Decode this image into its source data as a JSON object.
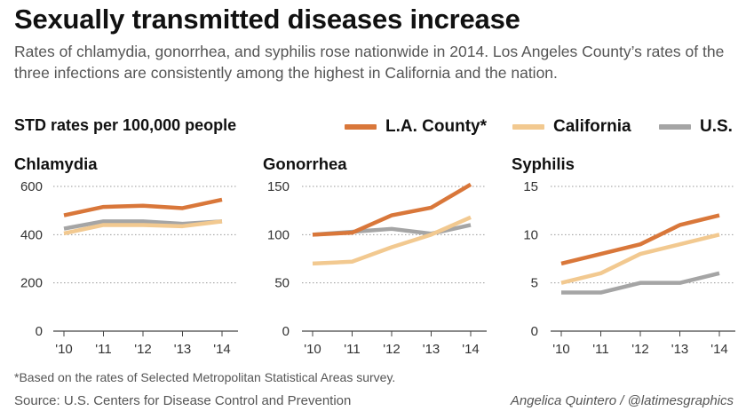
{
  "header": {
    "title": "Sexually transmitted diseases increase",
    "subtitle": "Rates of chlamydia, gonorrhea, and syphilis rose nationwide in 2014. Los Angeles County’s rates of the three infections are consistently among the highest in California and the nation."
  },
  "unit_label": "STD rates per 100,000 people",
  "legend": [
    {
      "label": "L.A. County*",
      "color": "#d9773a"
    },
    {
      "label": "California",
      "color": "#f2c990"
    },
    {
      "label": "U.S.",
      "color": "#a5a5a5"
    }
  ],
  "chart_data": [
    {
      "type": "line",
      "title": "Chlamydia",
      "x": [
        "'10",
        "'11",
        "'12",
        "'13",
        "'14"
      ],
      "ylim": [
        0,
        600
      ],
      "yticks": [
        0,
        200,
        400,
        600
      ],
      "grid": true,
      "series": [
        {
          "name": "L.A. County*",
          "color": "#d9773a",
          "values": [
            480,
            515,
            520,
            510,
            545
          ]
        },
        {
          "name": "California",
          "color": "#f2c990",
          "values": [
            405,
            440,
            440,
            435,
            455
          ]
        },
        {
          "name": "U.S.",
          "color": "#a5a5a5",
          "values": [
            425,
            455,
            455,
            445,
            455
          ]
        }
      ]
    },
    {
      "type": "line",
      "title": "Gonorrhea",
      "x": [
        "'10",
        "'11",
        "'12",
        "'13",
        "'14"
      ],
      "ylim": [
        0,
        150
      ],
      "yticks": [
        0,
        50,
        100,
        150
      ],
      "grid": true,
      "series": [
        {
          "name": "L.A. County*",
          "color": "#d9773a",
          "values": [
            100,
            102,
            120,
            128,
            152
          ]
        },
        {
          "name": "California",
          "color": "#f2c990",
          "values": [
            70,
            72,
            87,
            100,
            118
          ]
        },
        {
          "name": "U.S.",
          "color": "#a5a5a5",
          "values": [
            100,
            103,
            106,
            101,
            110
          ]
        }
      ]
    },
    {
      "type": "line",
      "title": "Syphilis",
      "x": [
        "'10",
        "'11",
        "'12",
        "'13",
        "'14"
      ],
      "ylim": [
        0,
        15
      ],
      "yticks": [
        0,
        5,
        10,
        15
      ],
      "grid": true,
      "series": [
        {
          "name": "L.A. County*",
          "color": "#d9773a",
          "values": [
            7,
            8,
            9,
            11,
            12
          ]
        },
        {
          "name": "California",
          "color": "#f2c990",
          "values": [
            5,
            6,
            8,
            9,
            10
          ]
        },
        {
          "name": "U.S.",
          "color": "#a5a5a5",
          "values": [
            4,
            4,
            5,
            5,
            6
          ]
        }
      ]
    }
  ],
  "footer": {
    "footnote": "*Based on the rates of Selected Metropolitan Statistical Areas survey.",
    "source": "Source: U.S. Centers for Disease Control and Prevention",
    "credit": "Angelica Quintero / @latimesgraphics"
  }
}
